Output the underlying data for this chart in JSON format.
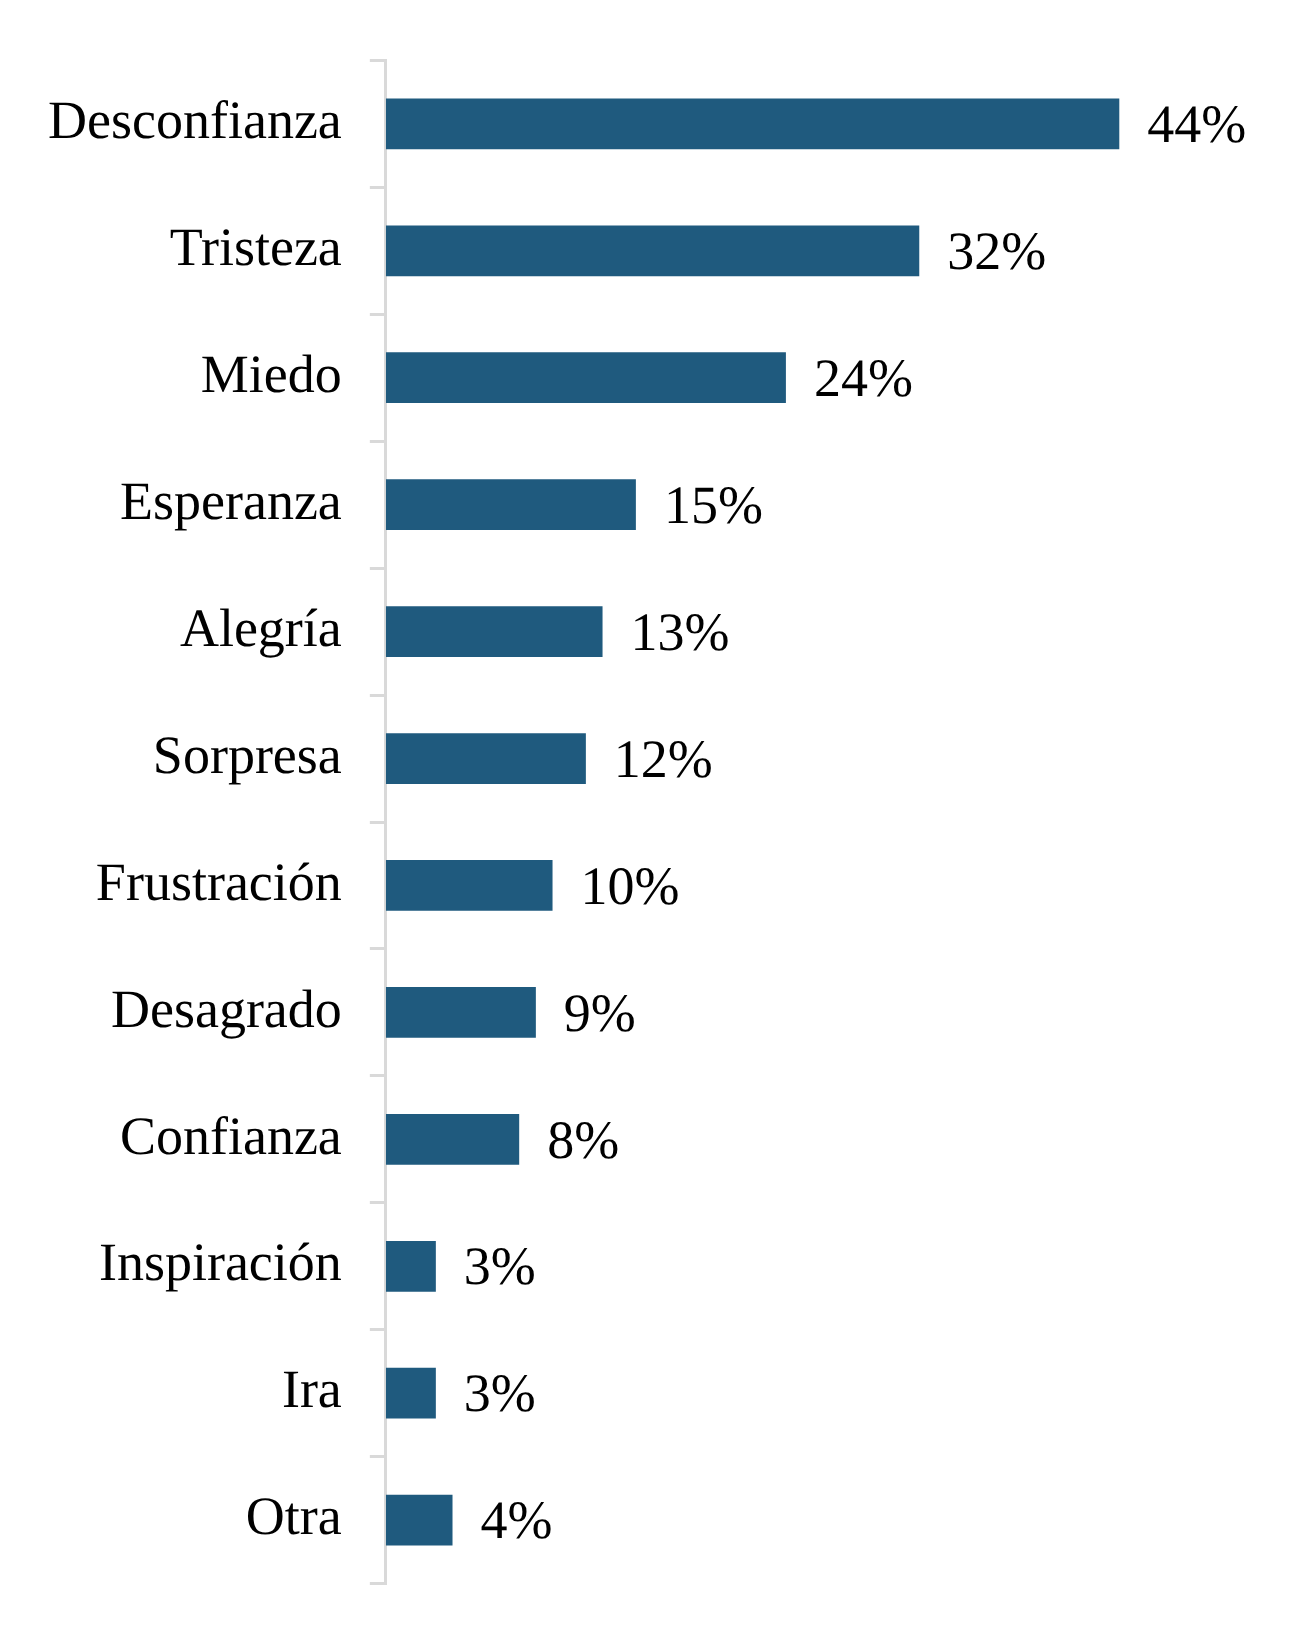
{
  "chart_data": {
    "type": "bar",
    "orientation": "horizontal",
    "categories": [
      "Desconfianza",
      "Tristeza",
      "Miedo",
      "Esperanza",
      "Alegría",
      "Sorpresa",
      "Frustración",
      "Desagrado",
      "Confianza",
      "Inspiración",
      "Ira",
      "Otra"
    ],
    "values": [
      44,
      32,
      24,
      15,
      13,
      12,
      10,
      9,
      8,
      3,
      3,
      4
    ],
    "value_labels": [
      "44%",
      "32%",
      "24%",
      "15%",
      "13%",
      "12%",
      "10%",
      "9%",
      "8%",
      "3%",
      "3%",
      "4%"
    ],
    "color": "#1f5a7e",
    "grid": false,
    "legend": false
  }
}
